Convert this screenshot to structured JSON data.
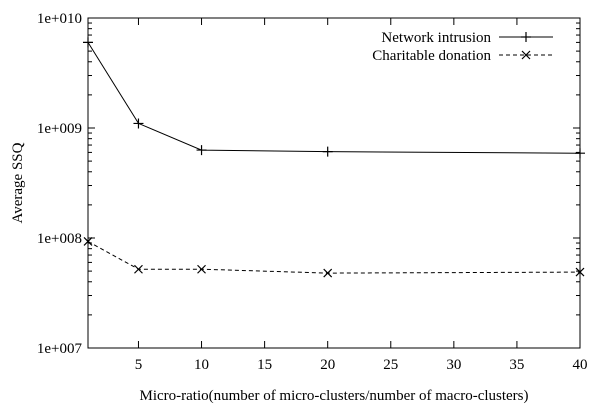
{
  "chart_data": {
    "type": "line",
    "title": "",
    "xlabel": "Micro-ratio(number of micro-clusters/number of macro-clusters)",
    "ylabel": "Average SSQ",
    "x_scale": "linear",
    "y_scale": "log",
    "xlim": [
      1,
      40
    ],
    "ylim": [
      10000000,
      10000000000
    ],
    "x_ticks": [
      5,
      10,
      15,
      20,
      25,
      30,
      35,
      40
    ],
    "x_tick_labels": [
      "5",
      "10",
      "15",
      "20",
      "25",
      "30",
      "35",
      "40"
    ],
    "y_ticks": [
      10000000,
      100000000,
      1000000000,
      10000000000
    ],
    "y_tick_labels": [
      "1e+007",
      "1e+008",
      "1e+009",
      "1e+010"
    ],
    "grid": false,
    "legend_position": "top-right",
    "series": [
      {
        "name": "Network intrusion",
        "marker": "plus",
        "line_style": "solid",
        "color": "#000000",
        "x": [
          1,
          5,
          10,
          20,
          40
        ],
        "y": [
          6000000000,
          1100000000,
          630000000,
          610000000,
          590000000
        ]
      },
      {
        "name": "Charitable donation",
        "marker": "cross",
        "line_style": "dashed",
        "color": "#000000",
        "x": [
          1,
          5,
          10,
          20,
          40
        ],
        "y": [
          93000000,
          52000000,
          52000000,
          48000000,
          49000000
        ]
      }
    ]
  }
}
